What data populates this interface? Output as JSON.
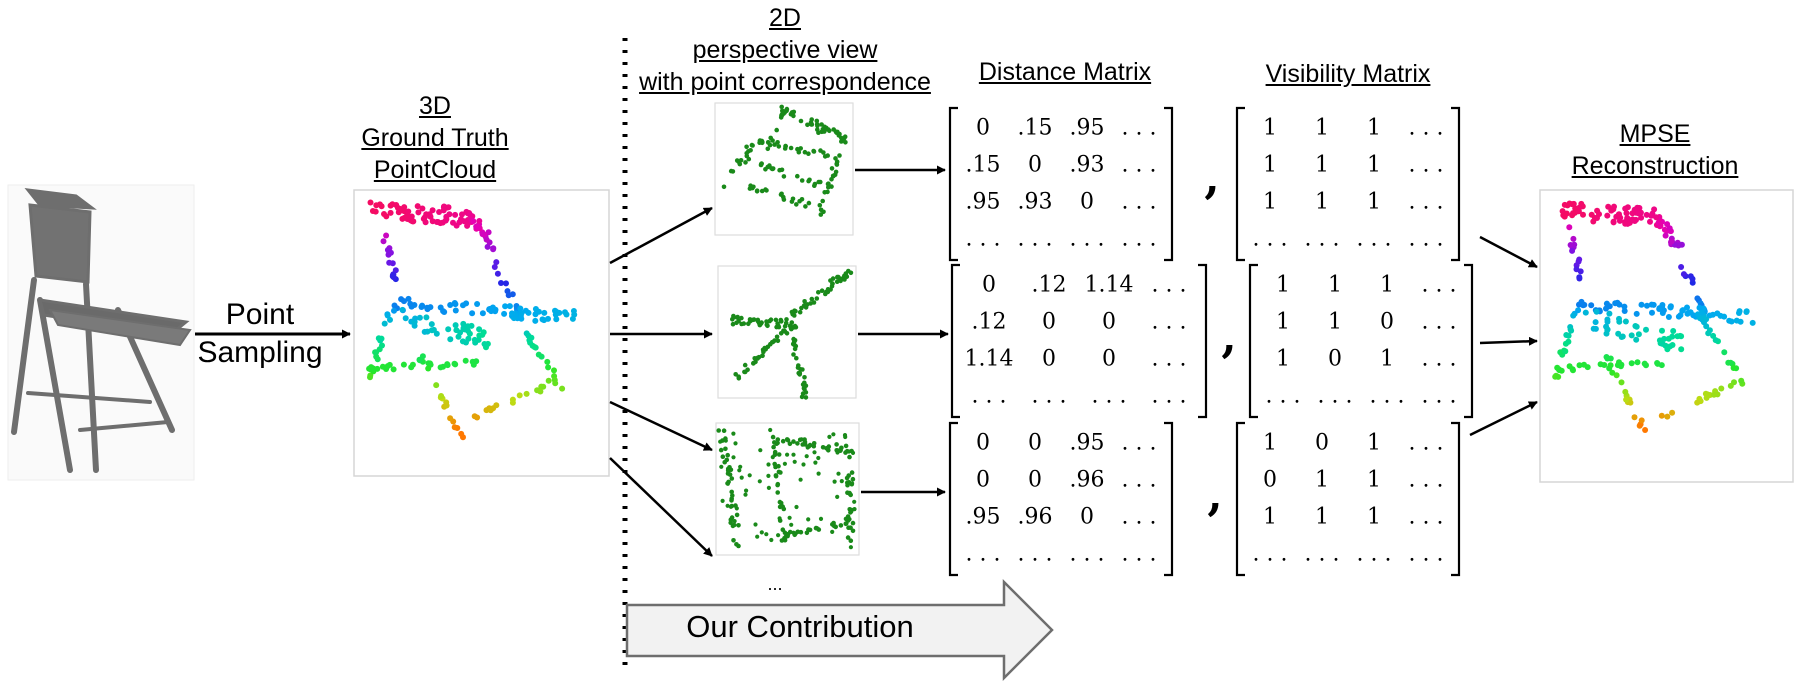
{
  "colors": {
    "green_points": "#1a8a1a",
    "chair_gray": "#6e6e6e",
    "arrow_fill": "#f2f2f2",
    "frame": "#cccccc"
  },
  "labels": {
    "point_sampling": [
      "Point",
      "Sampling"
    ],
    "ground_truth": [
      "3D",
      "Ground Truth",
      "PointCloud"
    ],
    "perspective": [
      "2D",
      "perspective view",
      "with point correspondence"
    ],
    "distance_matrix": "Distance Matrix",
    "visibility_matrix": "Visibility Matrix",
    "reconstruction": [
      "MPSE",
      "Reconstruction"
    ],
    "more_views": "...",
    "contribution": "Our Contribution",
    "comma": ","
  },
  "distance_matrices": [
    [
      [
        "0",
        ".15",
        ".95",
        "..."
      ],
      [
        ".15",
        "0",
        ".93",
        "..."
      ],
      [
        ".95",
        ".93",
        "0",
        "..."
      ],
      [
        "...",
        "...",
        "...",
        "..."
      ]
    ],
    [
      [
        "0",
        ".12",
        "1.14",
        "..."
      ],
      [
        ".12",
        "0",
        "0",
        "..."
      ],
      [
        "1.14",
        "0",
        "0",
        "..."
      ],
      [
        "...",
        "...",
        "...",
        "..."
      ]
    ],
    [
      [
        "0",
        "0",
        ".95",
        "..."
      ],
      [
        "0",
        "0",
        ".96",
        "..."
      ],
      [
        ".95",
        ".96",
        "0",
        "..."
      ],
      [
        "...",
        "...",
        "...",
        "..."
      ]
    ]
  ],
  "visibility_matrices": [
    [
      [
        "1",
        "1",
        "1",
        "..."
      ],
      [
        "1",
        "1",
        "1",
        "..."
      ],
      [
        "1",
        "1",
        "1",
        "..."
      ],
      [
        "...",
        "...",
        "...",
        "..."
      ]
    ],
    [
      [
        "1",
        "1",
        "1",
        "..."
      ],
      [
        "1",
        "1",
        "0",
        "..."
      ],
      [
        "1",
        "0",
        "1",
        "..."
      ],
      [
        "...",
        "...",
        "...",
        "..."
      ]
    ],
    [
      [
        "1",
        "0",
        "1",
        "..."
      ],
      [
        "0",
        "1",
        "1",
        "..."
      ],
      [
        "1",
        "1",
        "1",
        "..."
      ],
      [
        "...",
        "...",
        "...",
        "..."
      ]
    ]
  ]
}
